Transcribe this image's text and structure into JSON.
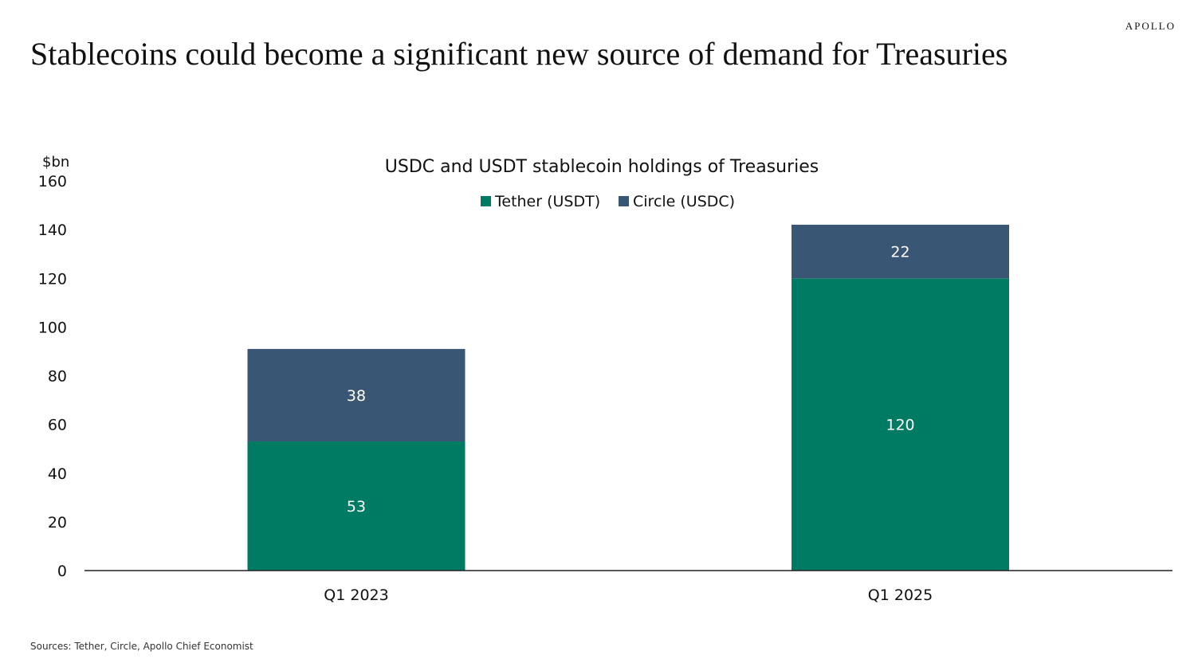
{
  "header": {
    "brand": "APOLLO",
    "title": "Stablecoins could become a significant new source of demand for Treasuries"
  },
  "chart_data": {
    "type": "bar",
    "stacked": true,
    "title": "USDC and USDT stablecoin holdings of Treasuries",
    "ylabel": "$bn",
    "xlabel": "",
    "categories": [
      "Q1 2023",
      "Q1 2025"
    ],
    "series": [
      {
        "name": "Tether (USDT)",
        "values": [
          53,
          120
        ],
        "color": "#007B63"
      },
      {
        "name": "Circle (USDC)",
        "values": [
          38,
          22
        ],
        "color": "#3A5675"
      }
    ],
    "ylim": [
      0,
      160
    ],
    "yticks": [
      0,
      20,
      40,
      60,
      80,
      100,
      120,
      140,
      160
    ],
    "grid": false,
    "legend_position": "top-center",
    "data_labels": true
  },
  "footer": {
    "sources": "Sources: Tether, Circle, Apollo Chief Economist"
  }
}
